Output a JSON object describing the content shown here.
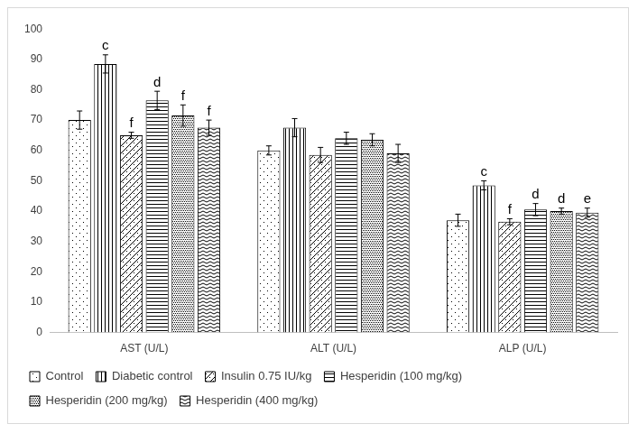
{
  "chart_data": {
    "type": "bar",
    "categories": [
      "AST (U/L)",
      "ALT (U/L)",
      "ALP (U/L)"
    ],
    "series": [
      {
        "name": "Control",
        "color": "#000000",
        "values": [
          70,
          60,
          37
        ],
        "errors": [
          3,
          1.5,
          2
        ],
        "letters": [
          null,
          null,
          null
        ]
      },
      {
        "name": "Diabetic control",
        "color": "#000000",
        "values": [
          88.5,
          67.5,
          48.5
        ],
        "errors": [
          3,
          3,
          1.5
        ],
        "letters": [
          "c",
          null,
          "c"
        ]
      },
      {
        "name": "Insulin 0.75 IU/kg",
        "color": "#000000",
        "values": [
          65,
          58.5,
          36.5
        ],
        "errors": [
          1,
          2.5,
          1
        ],
        "letters": [
          "f",
          null,
          "f"
        ]
      },
      {
        "name": "Hesperidin (100 mg/kg)",
        "color": "#000000",
        "values": [
          76.5,
          64,
          40.5
        ],
        "errors": [
          3,
          2,
          2
        ],
        "letters": [
          "d",
          null,
          "d"
        ]
      },
      {
        "name": "Hesperidin (200 mg/kg)",
        "color": "#000000",
        "values": [
          71.5,
          63.5,
          40
        ],
        "errors": [
          3.5,
          2,
          1
        ],
        "letters": [
          "f",
          null,
          "d"
        ]
      },
      {
        "name": "Hesperidin (400 mg/kg)",
        "color": "#000000",
        "values": [
          67.5,
          59,
          39.5
        ],
        "errors": [
          2.5,
          3,
          1.5
        ],
        "letters": [
          "f",
          null,
          "e"
        ]
      }
    ],
    "ylim": [
      0,
      100
    ],
    "yticks": [
      0,
      10,
      20,
      30,
      40,
      50,
      60,
      70,
      80,
      90,
      100
    ],
    "grid": false,
    "legend": "bottom",
    "data_labels": false
  }
}
